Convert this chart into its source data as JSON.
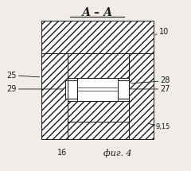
{
  "title": "А – А",
  "fig_label": "фиг. 4",
  "bg_color": "#f0ede8",
  "line_color": "#1a1a1a",
  "lw": 0.7
}
